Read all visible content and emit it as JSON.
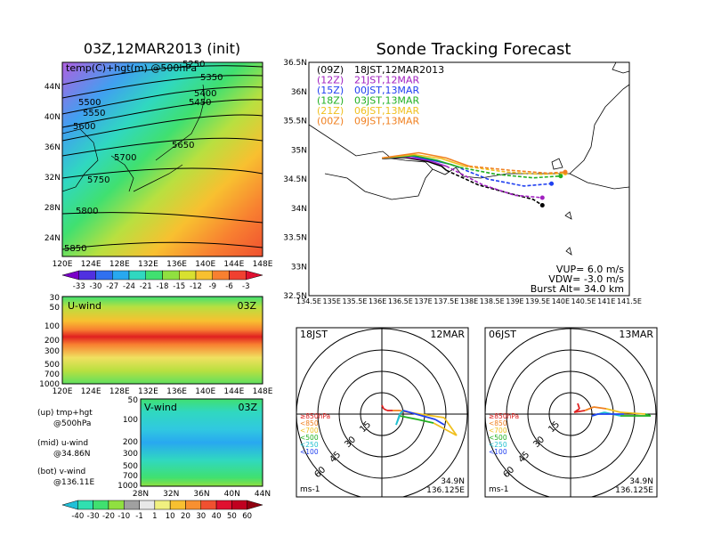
{
  "left": {
    "title": "03Z,12MAR2013 (init)",
    "map_label": "temp(C)+hgt(m) @500hPa",
    "lat_ticks": [
      "44N",
      "40N",
      "36N",
      "32N",
      "28N",
      "24N"
    ],
    "lon_ticks": [
      "120E",
      "124E",
      "128E",
      "132E",
      "136E",
      "140E",
      "144E",
      "148E"
    ],
    "height_labels": [
      "5250",
      "5350",
      "5400",
      "5450",
      "5500",
      "5550",
      "5600",
      "5650",
      "5700",
      "5750",
      "5800",
      "5850"
    ],
    "temp_colorbar": {
      "labels": [
        "-33",
        "-30",
        "-27",
        "-24",
        "-21",
        "-18",
        "-15",
        "-12",
        "-9",
        "-6",
        "-3"
      ],
      "colors": [
        "#7a00c8",
        "#5030e0",
        "#3070f0",
        "#28a8f0",
        "#30d8c0",
        "#40e070",
        "#90e040",
        "#d8e030",
        "#f8c030",
        "#f88030",
        "#f04030",
        "#e01030"
      ]
    },
    "uwind": {
      "label": "U-wind",
      "time": "03Z",
      "p_ticks": [
        "30",
        "50",
        "100",
        "200",
        "300",
        "500",
        "700",
        "1000"
      ],
      "lon_ticks": [
        "120E",
        "124E",
        "128E",
        "132E",
        "136E",
        "140E",
        "144E",
        "148E"
      ]
    },
    "vwind": {
      "label": "V-wind",
      "time": "03Z",
      "p_ticks": [
        "50",
        "100",
        "200",
        "300",
        "500",
        "700",
        "1000"
      ],
      "lat_ticks": [
        "28N",
        "32N",
        "36N",
        "40N",
        "44N"
      ]
    },
    "legend": {
      "up": [
        "(up) tmp+hgt",
        "@500hPa"
      ],
      "mid": [
        "(mid) u-wind",
        "@34.86N"
      ],
      "bot": [
        "(bot) v-wind",
        "@136.11E"
      ]
    },
    "wind_colorbar": {
      "labels": [
        "-40",
        "-30",
        "-20",
        "-10",
        "-1",
        "1",
        "10",
        "20",
        "30",
        "40",
        "50",
        "60"
      ],
      "colors": [
        "#20c0d8",
        "#30e0b0",
        "#40e070",
        "#90e040",
        "#a0a0a0",
        "#e8e8e8",
        "#f0f080",
        "#f8c030",
        "#f89030",
        "#f05030",
        "#e01030",
        "#c00020",
        "#900010"
      ]
    }
  },
  "right": {
    "title": "Sonde Tracking Forecast",
    "lat_ticks": [
      "36.5N",
      "36N",
      "35.5N",
      "35N",
      "34.5N",
      "34N",
      "33.5N",
      "33N",
      "32.5N"
    ],
    "lon_ticks": [
      "134.5E",
      "135E",
      "135.5E",
      "136E",
      "136.5E",
      "137E",
      "137.5E",
      "138E",
      "138.5E",
      "139E",
      "139.5E",
      "140E",
      "140.5E",
      "141E",
      "141.5E"
    ],
    "launches": [
      {
        "utc": "(09Z)",
        "jst": "18JST,12MAR2013",
        "color": "#000000"
      },
      {
        "utc": "(12Z)",
        "jst": "21JST,12MAR",
        "color": "#a020c0"
      },
      {
        "utc": "(15Z)",
        "jst": "00JST,13MAR",
        "color": "#2040f0"
      },
      {
        "utc": "(18Z)",
        "jst": "03JST,13MAR",
        "color": "#20b020"
      },
      {
        "utc": "(21Z)",
        "jst": "06JST,13MAR",
        "color": "#f0c020"
      },
      {
        "utc": "(00Z)",
        "jst": "09JST,13MAR",
        "color": "#f08020"
      }
    ],
    "params": [
      "VUP= 6.0 m/s",
      "VDW= -3.0 m/s",
      "Burst Alt= 34.0 km"
    ],
    "hodo": [
      {
        "time": "18JST",
        "date": "12MAR",
        "lat": "34.9N",
        "lon": "136.125E",
        "unit": "ms-1"
      },
      {
        "time": "06JST",
        "date": "13MAR",
        "lat": "34.9N",
        "lon": "136.125E",
        "unit": "ms-1"
      }
    ],
    "ring_labels": [
      "15",
      "30",
      "45",
      "60"
    ],
    "hodo_legend": [
      "≥850hPa",
      "<850",
      "<700",
      "<500",
      "<250",
      "<100"
    ],
    "hodo_legend_colors": [
      "#e02020",
      "#f08020",
      "#f0c020",
      "#20b020",
      "#20c0d0",
      "#2040f0"
    ]
  },
  "chart_data": [
    {
      "type": "line",
      "title": "Sonde Tracking Forecast",
      "xlim": [
        134.5,
        141.5
      ],
      "ylim": [
        32.5,
        36.5
      ],
      "series": [
        {
          "name": "(09Z) 18JST,12MAR2013",
          "style": "solid",
          "x": [
            136.1,
            136.6,
            137.1,
            137.4,
            137.5
          ],
          "y": [
            34.85,
            34.87,
            34.8,
            34.72,
            34.65
          ]
        },
        {
          "name": "(09Z) 18JST,12MAR2013 descent",
          "style": "dashed",
          "x": [
            137.5,
            138.2,
            138.9,
            139.4,
            139.6
          ],
          "y": [
            34.65,
            34.4,
            34.25,
            34.15,
            34.05
          ]
        },
        {
          "name": "(12Z) 21JST,12MAR",
          "style": "solid",
          "x": [
            136.1,
            136.6,
            137.1,
            137.5
          ],
          "y": [
            34.86,
            34.88,
            34.82,
            34.72
          ]
        },
        {
          "name": "(12Z) 21JST,12MAR descent",
          "style": "dashed",
          "x": [
            137.5,
            138.3,
            139.0,
            139.6
          ],
          "y": [
            34.72,
            34.4,
            34.22,
            34.18
          ]
        },
        {
          "name": "(15Z) 00JST,13MAR",
          "style": "solid",
          "x": [
            136.1,
            136.7,
            137.2,
            137.6
          ],
          "y": [
            34.86,
            34.9,
            34.82,
            34.75
          ]
        },
        {
          "name": "(15Z) 00JST,13MAR descent",
          "style": "dashed",
          "x": [
            137.6,
            138.4,
            139.2,
            139.8
          ],
          "y": [
            34.75,
            34.5,
            34.38,
            34.42
          ]
        },
        {
          "name": "(18Z) 03JST,13MAR",
          "style": "solid",
          "x": [
            136.1,
            136.8,
            137.3,
            137.8
          ],
          "y": [
            34.86,
            34.9,
            34.82,
            34.7
          ]
        },
        {
          "name": "(18Z) 03JST,13MAR descent",
          "style": "dashed",
          "x": [
            137.8,
            138.6,
            139.4,
            140.0
          ],
          "y": [
            34.7,
            34.58,
            34.52,
            34.55
          ]
        },
        {
          "name": "(21Z) 06JST,13MAR",
          "style": "solid",
          "x": [
            136.1,
            136.8,
            137.4,
            137.9
          ],
          "y": [
            34.86,
            34.92,
            34.85,
            34.72
          ]
        },
        {
          "name": "(21Z) 06JST,13MAR descent",
          "style": "dashed",
          "x": [
            137.9,
            138.8,
            139.6,
            140.1
          ],
          "y": [
            34.72,
            34.62,
            34.58,
            34.6
          ]
        },
        {
          "name": "(00Z) 09JST,13MAR",
          "style": "solid",
          "x": [
            136.1,
            136.9,
            137.5,
            138.0
          ],
          "y": [
            34.86,
            34.95,
            34.86,
            34.72
          ]
        },
        {
          "name": "(00Z) 09JST,13MAR descent",
          "style": "dashed",
          "x": [
            138.0,
            138.9,
            139.7,
            140.1
          ],
          "y": [
            34.72,
            34.65,
            34.6,
            34.62
          ]
        }
      ]
    }
  ]
}
